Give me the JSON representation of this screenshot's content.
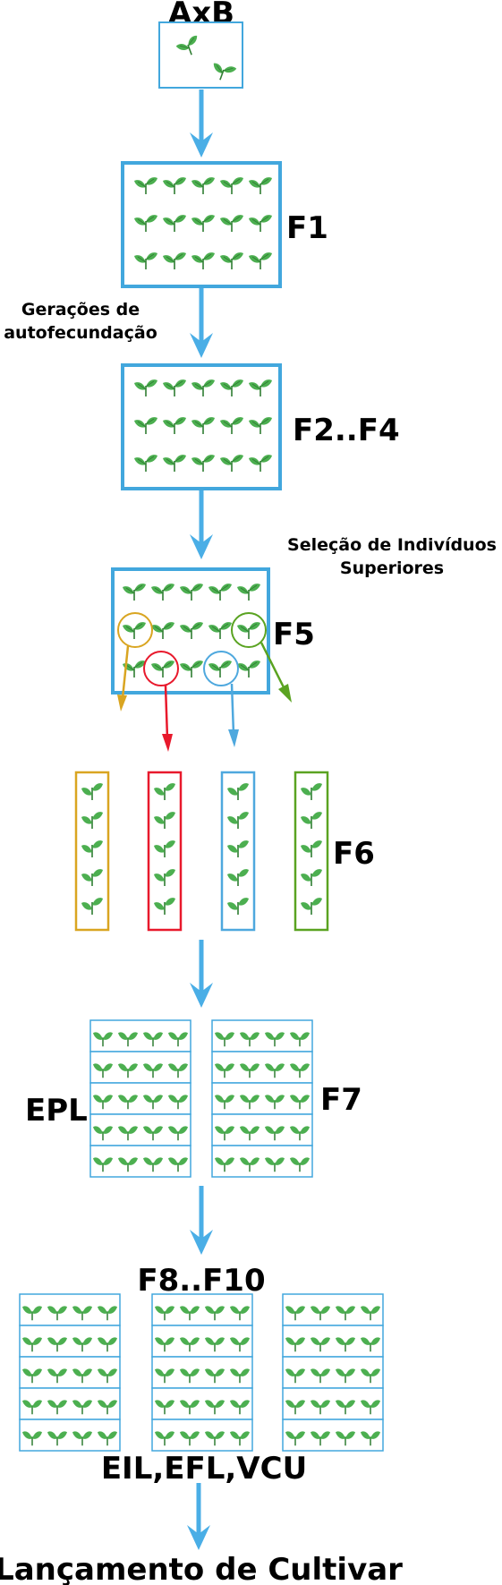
{
  "labels": {
    "cross": "AxB",
    "f1": "F1",
    "selfing_line1": "Gerações de",
    "selfing_line2": "autofecundação",
    "f2f4": "F2..F4",
    "selection_line1": "Seleção de Indivíduos",
    "selection_line2": "Superiores",
    "f5": "F5",
    "f6": "F6",
    "epl": "EPL",
    "f7": "F7",
    "f8f10": "F8..F10",
    "trials": "EIL,EFL,VCU",
    "release": "Lançamento de Cultivar"
  },
  "colors": {
    "arrow_blue": "#4aaee6",
    "box_blue": "#42a7dd",
    "leaf_green": "#4caf50",
    "stem_green": "#2f7d32",
    "yellow": "#d9a521",
    "red": "#e8192c",
    "light_blue": "#4ea8de",
    "green_sel": "#5aa321"
  },
  "icons": {
    "plant": "seedling-icon",
    "arrow": "down-arrow-icon"
  }
}
